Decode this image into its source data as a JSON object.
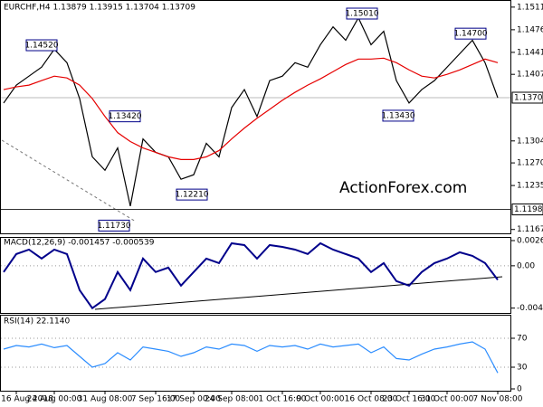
{
  "chart_data": [
    {
      "type": "line",
      "title": "EURCHF,H4  1.13879 1.13915 1.13704 1.13709",
      "watermark": "ActionForex.com",
      "ylim": [
        1.1161,
        1.1522
      ],
      "yticks": [
        {
          "value": 1.1511,
          "label": "1.15110"
        },
        {
          "value": 1.1476,
          "label": "1.14760"
        },
        {
          "value": 1.1441,
          "label": "1.14410"
        },
        {
          "value": 1.1407,
          "label": "1.14070"
        },
        {
          "value": 1.1304,
          "label": "1.13040"
        },
        {
          "value": 1.127,
          "label": "1.12700"
        },
        {
          "value": 1.1235,
          "label": "1.12350"
        },
        {
          "value": 1.1167,
          "label": "1.11670"
        }
      ],
      "current": {
        "value": 1.13709,
        "label": "1.13709"
      },
      "level": {
        "value": 1.1198,
        "label": "1.11980"
      },
      "annotations": [
        {
          "value": 1.1452,
          "label": "1.14520"
        },
        {
          "value": 1.1342,
          "label": "1.13420"
        },
        {
          "value": 1.1173,
          "label": "1.11730"
        },
        {
          "value": 1.1221,
          "label": "1.12210"
        },
        {
          "value": 1.1501,
          "label": "1.15010"
        },
        {
          "value": 1.1343,
          "label": "1.13430"
        },
        {
          "value": 1.147,
          "label": "1.14700"
        }
      ],
      "series": [
        {
          "name": "close",
          "color": "#000000",
          "values": [
            1.13626,
            1.13903,
            1.14042,
            1.14181,
            1.14458,
            1.1425,
            1.13695,
            1.12794,
            1.12586,
            1.12932,
            1.12031,
            1.13071,
            1.12863,
            1.12794,
            1.12447,
            1.12516,
            1.13002,
            1.12794,
            1.13557,
            1.13834,
            1.13418,
            1.13973,
            1.14042,
            1.1425,
            1.14181,
            1.14528,
            1.14805,
            1.14597,
            1.14944,
            1.14528,
            1.14736,
            1.13973,
            1.13626,
            1.13834,
            1.13973,
            1.14181,
            1.14389,
            1.14597,
            1.1425,
            1.13709
          ]
        },
        {
          "name": "ma",
          "color": "#e60000",
          "values": [
            1.13834,
            1.13876,
            1.13903,
            1.13973,
            1.14042,
            1.14014,
            1.13903,
            1.13695,
            1.13418,
            1.13168,
            1.1303,
            1.12932,
            1.12863,
            1.12794,
            1.12752,
            1.12752,
            1.12794,
            1.12891,
            1.13071,
            1.13238,
            1.1339,
            1.13529,
            1.13668,
            1.13792,
            1.13903,
            1.14,
            1.14111,
            1.14222,
            1.14306,
            1.14306,
            1.1432,
            1.1425,
            1.14139,
            1.14042,
            1.14014,
            1.1407,
            1.14139,
            1.14222,
            1.14306,
            1.1425
          ]
        }
      ]
    },
    {
      "type": "line",
      "title": "MACD(12,26,9) -0.001457 -0.000539",
      "ylim": [
        -0.0049,
        0.0029
      ],
      "yticks": [
        0.002619,
        {
          "value": 0,
          "label": "0.00"
        },
        -0.004398
      ],
      "series": [
        {
          "name": "macd",
          "color": "#00008b",
          "values": [
            -0.00065,
            0.00122,
            0.00168,
            0.00075,
            0.00168,
            0.00122,
            -0.00253,
            -0.0044,
            -0.00346,
            -0.00065,
            -0.00253,
            0.00075,
            -0.00065,
            -0.00019,
            -0.00206,
            -0.00065,
            0.00075,
            0.00028,
            0.00234,
            0.00215,
            0.00075,
            0.00215,
            0.00196,
            0.00168,
            0.00122,
            0.00234,
            0.00168,
            0.00122,
            0.00075,
            -0.00065,
            0.00028,
            -0.00159,
            -0.00206,
            -0.00065,
            0.00028,
            0.00075,
            0.0014,
            0.00103,
            0.00028,
            -0.001457
          ]
        }
      ]
    },
    {
      "type": "line",
      "title": "RSI(14) 22.1140",
      "ylim": [
        0,
        100
      ],
      "yticks": [
        70,
        30,
        0
      ],
      "categories": [
        null,
        "16 Aug 2018",
        null,
        null,
        "24 Aug 00:00",
        null,
        null,
        null,
        "31 Aug 08:00",
        null,
        null,
        null,
        "7 Sep 16:00",
        null,
        null,
        "17 Sep 00:00",
        null,
        null,
        "24 Sep 08:00",
        null,
        null,
        null,
        "1 Oct 16:00",
        null,
        null,
        "9 Oct 00:00",
        null,
        null,
        null,
        "16 Oct 08:00",
        null,
        null,
        "23 Oct 16:00",
        null,
        null,
        "31 Oct 00:00",
        null,
        null,
        null,
        "7 Nov 08:00"
      ],
      "series": [
        {
          "name": "rsi",
          "color": "#2a8cff",
          "values": [
            55,
            60,
            58,
            62,
            57,
            60,
            45,
            30,
            35,
            50,
            40,
            58,
            55,
            52,
            45,
            50,
            58,
            55,
            62,
            60,
            52,
            60,
            58,
            60,
            55,
            62,
            58,
            60,
            62,
            50,
            58,
            42,
            40,
            48,
            55,
            58,
            62,
            65,
            55,
            22.114
          ]
        }
      ]
    }
  ]
}
